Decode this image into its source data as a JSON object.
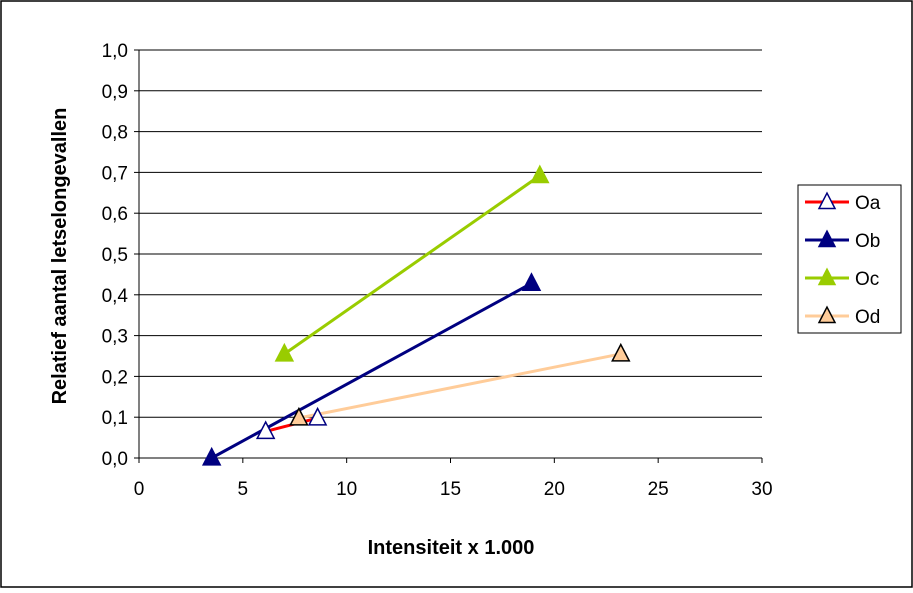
{
  "chart_data": {
    "type": "line",
    "title": "",
    "xlabel": "Intensiteit x 1.000",
    "ylabel": "Relatief aantal letselongevallen",
    "xlim": [
      0,
      30
    ],
    "ylim": [
      0,
      1.0
    ],
    "xticks": [
      0,
      5,
      10,
      15,
      20,
      25,
      30
    ],
    "yticks": [
      0,
      0.1,
      0.2,
      0.3,
      0.4,
      0.5,
      0.6,
      0.7,
      0.8,
      0.9,
      1.0
    ],
    "x_tick_labels": [
      "0",
      "5",
      "10",
      "15",
      "20",
      "25",
      "30"
    ],
    "y_tick_labels": [
      "0,0",
      "0,1",
      "0,2",
      "0,3",
      "0,4",
      "0,5",
      "0,6",
      "0,7",
      "0,8",
      "0,9",
      "1,0"
    ],
    "grid": "horizontal",
    "legend_position": "right",
    "series": [
      {
        "name": "Oa",
        "line_color": "#ff0000",
        "marker": "triangle-open",
        "marker_fill": "#ffffff",
        "marker_stroke": "#000080",
        "points": [
          [
            6.1,
            0.065
          ],
          [
            8.6,
            0.098
          ]
        ]
      },
      {
        "name": "Ob",
        "line_color": "#000080",
        "marker": "triangle-filled",
        "marker_fill": "#000080",
        "marker_stroke": "#000080",
        "points": [
          [
            3.5,
            0.0
          ],
          [
            18.9,
            0.428
          ]
        ]
      },
      {
        "name": "Oc",
        "line_color": "#99cc00",
        "marker": "triangle-filled",
        "marker_fill": "#99cc00",
        "marker_stroke": "#99cc00",
        "points": [
          [
            7.0,
            0.255
          ],
          [
            19.3,
            0.692
          ]
        ]
      },
      {
        "name": "Od",
        "line_color": "#ffcc99",
        "marker": "triangle-filled",
        "marker_fill": "#ffcc99",
        "marker_stroke": "#000000",
        "points": [
          [
            7.7,
            0.098
          ],
          [
            23.2,
            0.255
          ]
        ]
      }
    ]
  }
}
